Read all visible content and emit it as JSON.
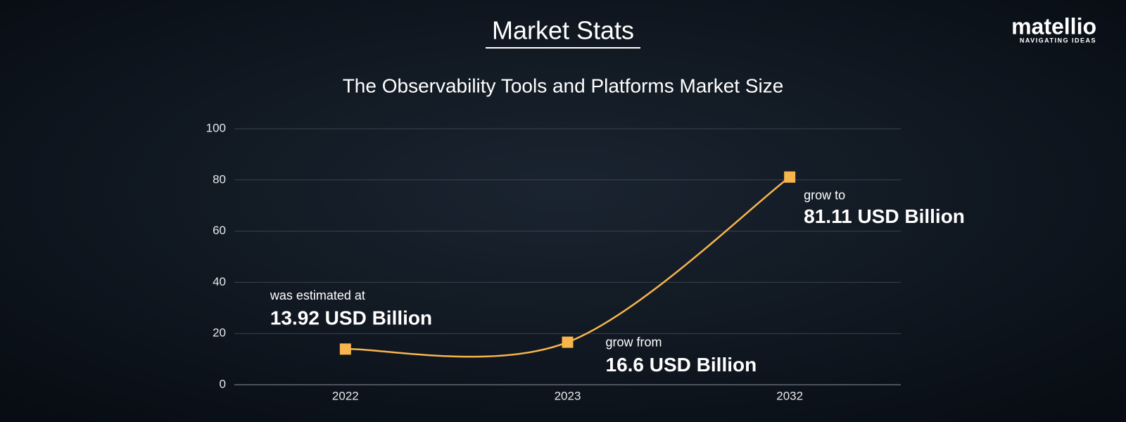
{
  "chart_data": {
    "type": "line",
    "title": "Market Stats",
    "subtitle": "The Observability Tools and Platforms Market Size",
    "brand": "matellio",
    "tagline": "NAVIGATING IDEAS",
    "categories": [
      "2022",
      "2023",
      "2032"
    ],
    "values": [
      13.92,
      16.6,
      81.11
    ],
    "value_labels": [
      "13.92 USD Billion",
      "16.6 USD Billion",
      "81.11 USD Billion"
    ],
    "annotations": [
      "was estimated at",
      "grow from",
      "grow to"
    ],
    "color": "#f8b54c",
    "ylim": [
      0,
      100
    ],
    "yticks": [
      0,
      20,
      40,
      60,
      80,
      100
    ],
    "grid": true
  }
}
